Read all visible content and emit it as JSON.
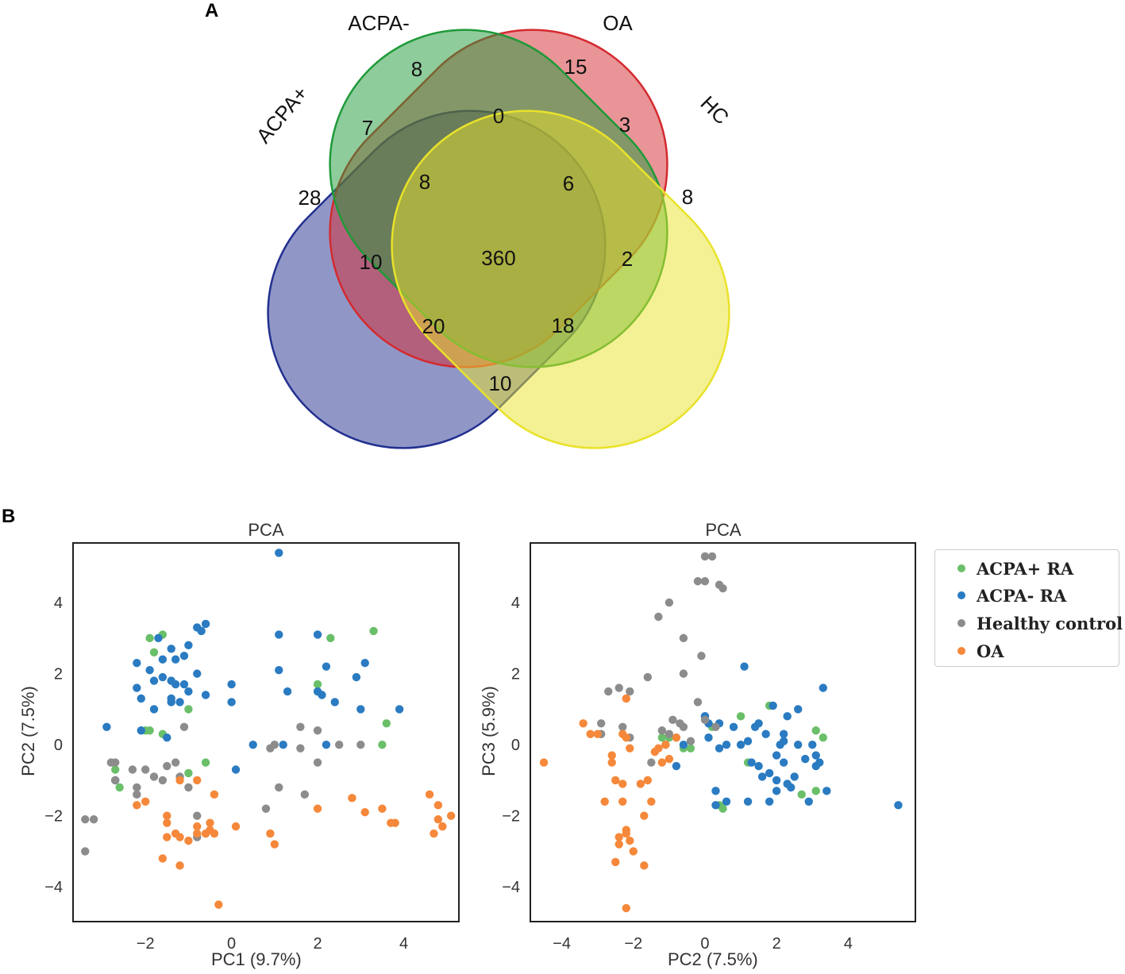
{
  "panels": {
    "a": "A",
    "b": "B"
  },
  "chart_data": [
    {
      "type": "venn",
      "sets": [
        "ACPA+",
        "ACPA-",
        "OA",
        "HC"
      ],
      "colors": {
        "ACPA+": "#22308f",
        "ACPA-": "#d42a2f",
        "OA": "#1f9a39",
        "HC": "#e9e22a"
      },
      "regions": [
        {
          "sets": [
            "ACPA+"
          ],
          "value": 28
        },
        {
          "sets": [
            "ACPA-"
          ],
          "value": 8
        },
        {
          "sets": [
            "OA"
          ],
          "value": 15
        },
        {
          "sets": [
            "HC"
          ],
          "value": 8
        },
        {
          "sets": [
            "ACPA+",
            "ACPA-"
          ],
          "value": 7
        },
        {
          "sets": [
            "ACPA-",
            "OA"
          ],
          "value": 0
        },
        {
          "sets": [
            "OA",
            "HC"
          ],
          "value": 3
        },
        {
          "sets": [
            "ACPA+",
            "ACPA-",
            "OA"
          ],
          "value": 8
        },
        {
          "sets": [
            "ACPA-",
            "OA",
            "HC"
          ],
          "value": 6
        },
        {
          "sets": [
            "ACPA+",
            "OA"
          ],
          "value": 10
        },
        {
          "sets": [
            "ACPA+",
            "ACPA-",
            "OA",
            "HC"
          ],
          "value": 360
        },
        {
          "sets": [
            "ACPA-",
            "HC"
          ],
          "value": 2
        },
        {
          "sets": [
            "ACPA+",
            "OA",
            "HC"
          ],
          "value": 20
        },
        {
          "sets": [
            "ACPA+",
            "ACPA-",
            "HC"
          ],
          "value": 18
        },
        {
          "sets": [
            "ACPA+",
            "HC"
          ],
          "value": 10
        }
      ]
    },
    {
      "type": "scatter",
      "title": "PCA",
      "xlabel": "PC1 (9.7%)",
      "ylabel": "PC2 (7.5%)",
      "xlim": [
        -3.7,
        5.3
      ],
      "ylim": [
        -5.0,
        5.7
      ],
      "xticks": [
        -2,
        0,
        2,
        4
      ],
      "yticks": [
        -4,
        -2,
        0,
        2,
        4
      ],
      "grid": false,
      "series": [
        {
          "name": "ACPA+ RA",
          "color": "#6abf69",
          "x": [
            -1.8,
            -1.6,
            -1.9,
            -1.6,
            -2.0,
            -1.0,
            -1.9,
            -2.7,
            -2.6,
            -0.6,
            -1.0,
            2.3,
            3.3,
            2.0,
            3.6,
            3.5
          ],
          "y": [
            2.6,
            3.1,
            0.4,
            0.3,
            0.4,
            1.0,
            3.0,
            -0.7,
            -1.2,
            -0.5,
            -0.8,
            3.0,
            3.2,
            1.7,
            0.6,
            0.0
          ]
        },
        {
          "name": "ACPA- RA",
          "color": "#2a7bc1",
          "x": [
            1.1,
            -0.6,
            -0.7,
            -1.7,
            -1.4,
            -1.0,
            -0.8,
            -1.6,
            -1.3,
            -1.1,
            -2.2,
            -2.2,
            -1.8,
            -1.9,
            -1.4,
            -1.3,
            -1.1,
            -0.8,
            -1.6,
            -2.1,
            -1.4,
            -1.2,
            -1.0,
            -0.6,
            -1.4,
            -1.8,
            -2.1,
            -2.9,
            -1.5,
            -2.7,
            1.1,
            1.1,
            2.0,
            2.2,
            3.1,
            2.9,
            1.3,
            2.0,
            2.1,
            2.4,
            3.0,
            3.9,
            0.0,
            0.0,
            1.2,
            0.5,
            0.1,
            2.2
          ],
          "y": [
            5.4,
            3.4,
            3.2,
            3.0,
            2.7,
            2.8,
            3.3,
            2.4,
            2.4,
            2.5,
            2.3,
            1.6,
            1.8,
            2.1,
            1.8,
            1.7,
            1.7,
            2.0,
            1.9,
            1.3,
            1.3,
            1.2,
            1.5,
            1.4,
            1.2,
            1.0,
            0.4,
            0.5,
            0.2,
            -1.0,
            3.1,
            2.1,
            3.1,
            2.2,
            2.3,
            1.9,
            1.5,
            1.5,
            1.4,
            1.2,
            1.0,
            1.0,
            1.7,
            1.2,
            0.0,
            0.0,
            -0.7,
            0.0
          ]
        },
        {
          "name": "Healthy control",
          "color": "#8c8c8c",
          "x": [
            -3.4,
            -3.2,
            -3.4,
            -2.7,
            -2.7,
            -2.8,
            -2.3,
            -2.2,
            -2.2,
            -2.0,
            -1.8,
            -1.5,
            -1.3,
            -1.2,
            -1.1,
            -1.6,
            -1.0,
            -0.8,
            -0.8,
            0.9,
            1.1,
            1.7,
            1.6,
            2.0,
            2.5,
            3.0,
            0.8,
            1.0,
            1.6,
            2.0
          ],
          "y": [
            -2.1,
            -2.1,
            -3.0,
            -0.5,
            -1.0,
            -0.5,
            -0.7,
            -1.2,
            -1.4,
            -0.7,
            -0.9,
            -0.6,
            -0.5,
            -0.9,
            0.5,
            -1.0,
            -1.2,
            -2.0,
            -2.6,
            -0.1,
            -1.2,
            -1.4,
            -0.1,
            -0.5,
            0.0,
            0.0,
            -1.8,
            0.0,
            0.5,
            0.4
          ]
        },
        {
          "name": "OA",
          "color": "#f5883a",
          "x": [
            -1.2,
            -2.2,
            -2.0,
            -1.5,
            -1.3,
            -1.2,
            -1.2,
            -1.0,
            -0.8,
            -0.8,
            -1.6,
            -1.5,
            -1.5,
            -0.8,
            -0.4,
            -0.4,
            -0.5,
            -0.6,
            -0.5,
            -0.3,
            0.1,
            0.9,
            1.0,
            2.0,
            2.8,
            3.1,
            3.5,
            3.7,
            3.8,
            4.6,
            4.8,
            4.9,
            5.1,
            4.8,
            4.9,
            4.7
          ],
          "y": [
            -1.0,
            -1.7,
            -1.6,
            -2.0,
            -2.5,
            -2.6,
            -3.4,
            -2.7,
            -2.3,
            -2.5,
            -3.2,
            -2.6,
            -2.2,
            -1.0,
            -1.4,
            -2.5,
            -2.4,
            -2.5,
            -2.2,
            -4.5,
            -2.3,
            -2.5,
            -2.8,
            -1.8,
            -1.5,
            -1.9,
            -1.8,
            -2.2,
            -2.2,
            -1.4,
            -1.7,
            -2.3,
            -2.0,
            -2.1,
            -2.3,
            -2.5
          ]
        }
      ]
    },
    {
      "type": "scatter",
      "title": "PCA",
      "xlabel": "PC2 (7.5%)",
      "ylabel": "PC3 (5.9%)",
      "xlim": [
        -4.9,
        5.9
      ],
      "ylim": [
        -5.0,
        5.7
      ],
      "xticks": [
        -4,
        -2,
        0,
        2,
        4
      ],
      "yticks": [
        -4,
        -2,
        0,
        2,
        4
      ],
      "grid": false,
      "series": [
        {
          "name": "ACPA+ RA",
          "color": "#6abf69",
          "x": [
            -1.2,
            -1.0,
            -0.8,
            -0.4,
            0.4,
            0.5,
            1.2,
            1.0,
            1.8,
            2.7,
            3.1,
            3.3,
            3.1,
            0.2,
            -0.6
          ],
          "y": [
            0.2,
            0.2,
            0.2,
            -0.1,
            -1.7,
            -1.8,
            -0.5,
            0.8,
            1.1,
            -1.4,
            0.4,
            0.2,
            -1.3,
            0.5,
            -0.1
          ]
        },
        {
          "name": "ACPA- RA",
          "color": "#2a7bc1",
          "x": [
            0.0,
            0.1,
            0.3,
            0.4,
            0.6,
            0.8,
            1.0,
            1.2,
            1.3,
            1.5,
            1.6,
            1.7,
            1.8,
            1.9,
            2.0,
            2.1,
            2.2,
            2.3,
            2.4,
            2.5,
            2.6,
            2.8,
            3.0,
            3.1,
            3.2,
            3.4,
            1.1,
            1.4,
            2.2,
            2.6,
            3.3,
            1.8,
            2.0,
            1.5,
            2.2,
            -0.8,
            -0.6,
            0.6,
            2.3,
            5.4,
            0.3,
            0.1,
            0.0,
            0.4,
            1.2,
            2.0,
            2.9,
            3.1
          ],
          "y": [
            0.8,
            0.6,
            -1.3,
            -0.1,
            0.0,
            0.5,
            0.0,
            -1.6,
            -0.5,
            0.6,
            -0.9,
            0.3,
            -0.8,
            1.1,
            -0.3,
            0.0,
            -0.5,
            0.8,
            -1.2,
            -0.9,
            0.0,
            -0.4,
            0.0,
            -0.6,
            -0.5,
            -1.3,
            2.2,
            0.5,
            0.3,
            1.0,
            1.6,
            -1.6,
            -1.3,
            -0.6,
            0.1,
            -0.6,
            0.0,
            -1.6,
            -1.1,
            -1.7,
            -1.7,
            0.2,
            0.8,
            0.6,
            0.1,
            -1.0,
            -1.6,
            -0.3
          ]
        },
        {
          "name": "Healthy control",
          "color": "#8c8c8c",
          "x": [
            0.0,
            0.2,
            -0.2,
            0.0,
            0.4,
            0.5,
            -1.0,
            -1.3,
            -0.6,
            -0.1,
            -0.6,
            -1.6,
            -2.4,
            -2.1,
            -2.7,
            -2.9,
            -2.9,
            -2.3,
            -2.1,
            -1.2,
            -1.0,
            -0.9,
            -0.7,
            -0.6,
            -0.4,
            -0.2,
            0.0,
            0.3,
            -1.5,
            -1.1
          ],
          "y": [
            5.3,
            5.3,
            4.6,
            4.6,
            4.5,
            4.4,
            4.0,
            3.6,
            3.0,
            2.5,
            2.0,
            1.9,
            1.6,
            1.5,
            1.5,
            0.6,
            0.3,
            0.5,
            0.2,
            0.4,
            0.3,
            0.7,
            0.6,
            0.5,
            0.1,
            1.2,
            0.7,
            0.5,
            -0.5,
            0.0
          ]
        },
        {
          "name": "OA",
          "color": "#f5883a",
          "x": [
            -4.5,
            -3.4,
            -3.2,
            -3.0,
            -2.8,
            -2.6,
            -2.6,
            -2.5,
            -2.4,
            -2.3,
            -2.3,
            -2.2,
            -2.2,
            -2.1,
            -2.0,
            -1.8,
            -1.7,
            -1.6,
            -1.5,
            -1.4,
            -1.3,
            -1.2,
            -1.1,
            -1.0,
            -0.8,
            -2.5,
            -2.4,
            -2.1,
            -2.2,
            -2.3,
            -2.2,
            -1.7,
            -2.2
          ],
          "y": [
            -0.5,
            0.6,
            0.3,
            0.3,
            -1.6,
            -0.3,
            -0.5,
            -1.0,
            -2.8,
            -1.1,
            -1.6,
            -2.4,
            -2.5,
            -2.7,
            -3.0,
            -1.1,
            -3.4,
            -1.0,
            -1.6,
            -0.2,
            -0.1,
            -0.5,
            0.0,
            -0.4,
            0.2,
            -3.3,
            -2.6,
            -0.1,
            1.3,
            0.3,
            -4.6,
            -2.0,
            0.2
          ]
        }
      ]
    }
  ]
}
